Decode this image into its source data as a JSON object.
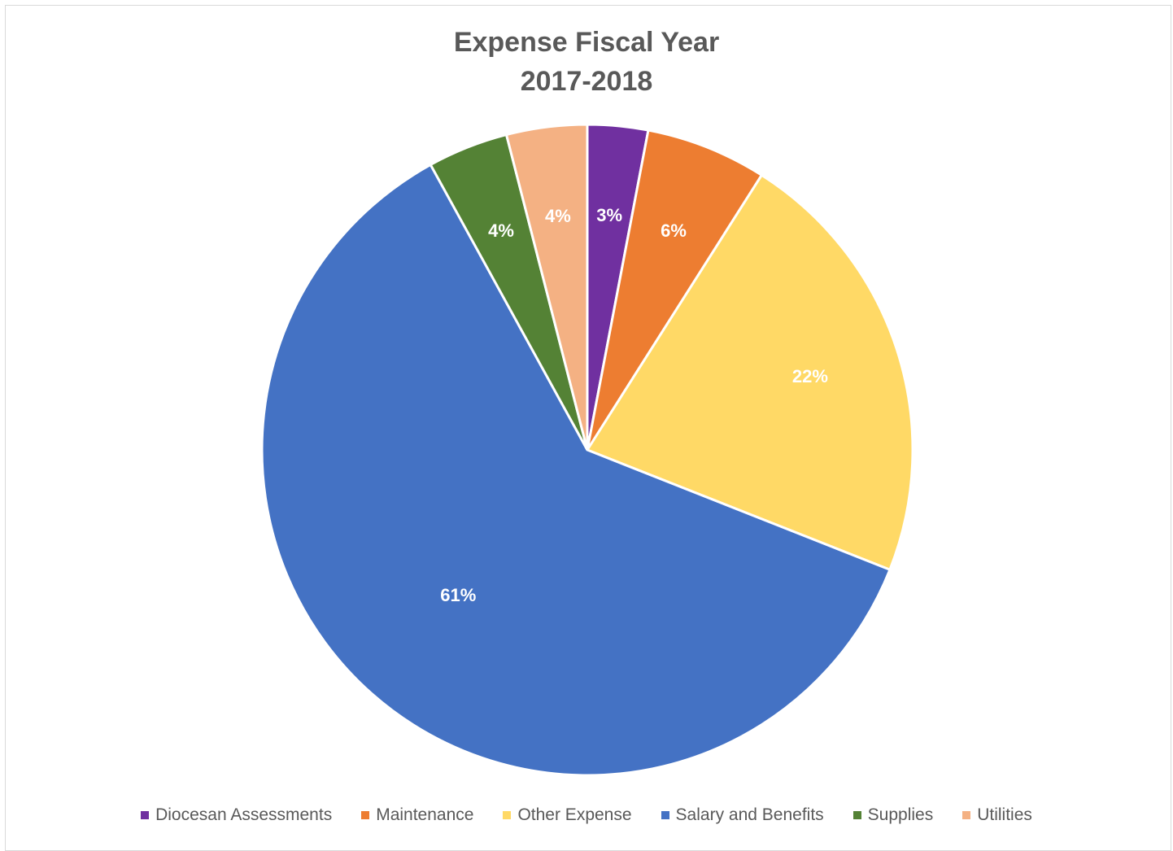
{
  "chart_data": {
    "type": "pie",
    "title_lines": [
      "Expense Fiscal Year",
      "2017-2018"
    ],
    "slices": [
      {
        "name": "Diocesan Assessments",
        "value": 3,
        "label": "3%",
        "color": "#7030a0"
      },
      {
        "name": "Maintenance",
        "value": 6,
        "label": "6%",
        "color": "#ed7d31"
      },
      {
        "name": "Other Expense",
        "value": 22,
        "label": "22%",
        "color": "#ffd966"
      },
      {
        "name": "Salary and Benefits",
        "value": 61,
        "label": "61%",
        "color": "#4472c4"
      },
      {
        "name": "Supplies",
        "value": 4,
        "label": "4%",
        "color": "#548235"
      },
      {
        "name": "Utilities",
        "value": 4,
        "label": "4%",
        "color": "#f4b183"
      }
    ],
    "legend_position": "bottom",
    "start_angle": "top, clockwise"
  }
}
